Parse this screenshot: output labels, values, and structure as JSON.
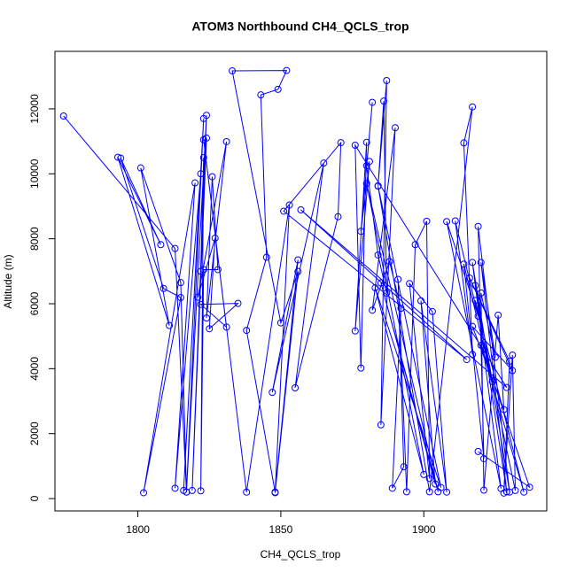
{
  "chart_data": {
    "type": "line",
    "title": "ATOM3 Northbound CH4_QCLS_trop",
    "x_label": "CH4_QCLS_trop",
    "y_label": "Altitude (m)",
    "color": "#0000ff",
    "x": [
      1774,
      1813,
      1817,
      1815,
      1801,
      1811,
      1793,
      1808,
      1794,
      1809,
      1815,
      1802,
      1820,
      1813,
      1822,
      1816,
      1823,
      1817,
      1824,
      1819,
      1824,
      1822,
      1823,
      1822,
      1823,
      1828,
      1826,
      1824,
      1831,
      1821,
      1827,
      1825,
      1835,
      1822,
      1831,
      1823,
      1838,
      1853,
      1848,
      1856,
      1850,
      1833,
      1852,
      1849,
      1843,
      1845,
      1838,
      1848,
      1856,
      1847,
      1865,
      1855,
      1870,
      1871,
      1851,
      1915,
      1857,
      1929,
      1876,
      1878,
      1880,
      1876,
      1881,
      1878,
      1882,
      1880,
      1884,
      1887,
      1886,
      1884,
      1887,
      1885,
      1890,
      1882,
      1888,
      1892,
      1889,
      1893,
      1891,
      1894,
      1897,
      1901,
      1902,
      1895,
      1903,
      1908,
      1899,
      1904,
      1885,
      1905,
      1880,
      1900,
      1883,
      1906,
      1884,
      1902,
      1917,
      1914,
      1917,
      1911,
      1919,
      1908,
      1927,
      1917,
      1930,
      1919,
      1921,
      1914,
      1924,
      1918,
      1929,
      1920,
      1925,
      1920,
      1921,
      1926,
      1928,
      1917,
      1931,
      1916,
      1930,
      1928,
      1931,
      1932,
      1918,
      1935,
      1920,
      1937,
      1919
    ],
    "values": [
      11780,
      7700,
      200,
      6650,
      10180,
      5330,
      10510,
      7820,
      10480,
      6470,
      6190,
      180,
      9720,
      320,
      10000,
      250,
      11700,
      200,
      11800,
      250,
      11100,
      7000,
      10500,
      240,
      7050,
      7050,
      9910,
      5560,
      10990,
      6200,
      8020,
      5230,
      6010,
      5980,
      5280,
      11050,
      200,
      9040,
      180,
      6990,
      5410,
      13170,
      13180,
      12600,
      12430,
      7430,
      5180,
      200,
      7350,
      3270,
      10330,
      3410,
      8680,
      10960,
      8850,
      4280,
      8890,
      3420,
      10880,
      4020,
      10970,
      5160,
      10380,
      8230,
      12200,
      10250,
      7500,
      6330,
      12240,
      9630,
      12870,
      2270,
      11420,
      5800,
      7300,
      5860,
      320,
      980,
      6750,
      210,
      7820,
      8540,
      620,
      6620,
      5760,
      200,
      6090,
      450,
      6640,
      210,
      9700,
      740,
      6490,
      340,
      9620,
      210,
      12060,
      10950,
      4440,
      8550,
      5620,
      8530,
      310,
      7270,
      200,
      8380,
      1230,
      7220,
      3600,
      6560,
      210,
      7270,
      4350,
      6330,
      260,
      5650,
      2740,
      5300,
      3940,
      6790,
      4230,
      170,
      4420,
      250,
      6100,
      200,
      4720,
      350,
      1450
    ],
    "xlim": [
      1771,
      1943
    ],
    "ylim": [
      -380,
      13770
    ],
    "xticks": [
      1800,
      1850,
      1900
    ],
    "yticks": [
      0,
      2000,
      4000,
      6000,
      8000,
      10000,
      12000
    ]
  }
}
